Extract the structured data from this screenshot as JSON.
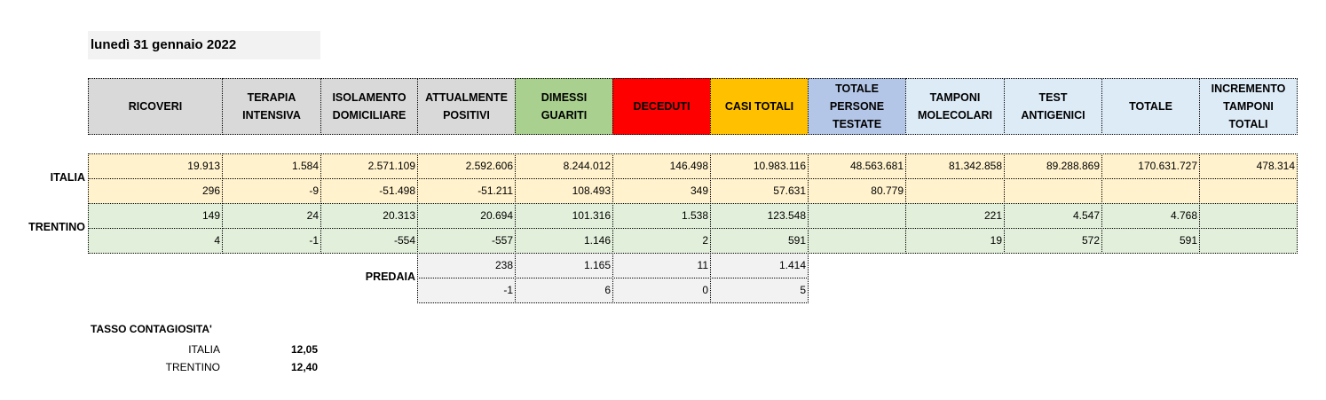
{
  "date": "lunedì 31 gennaio 2022",
  "headers": [
    {
      "label": "RICOVERI",
      "bg": "#d9d9d9"
    },
    {
      "label": "TERAPIA\nINTENSIVA",
      "bg": "#d9d9d9"
    },
    {
      "label": "ISOLAMENTO\nDOMICILIARE",
      "bg": "#d9d9d9"
    },
    {
      "label": "ATTUALMENTE\nPOSITIVI",
      "bg": "#d9d9d9"
    },
    {
      "label": "DIMESSI\nGUARITI",
      "bg": "#a9d08e"
    },
    {
      "label": "DECEDUTI",
      "bg": "#ff0000"
    },
    {
      "label": "CASI TOTALI",
      "bg": "#ffc000"
    },
    {
      "label": "TOTALE\nPERSONE\nTESTATE",
      "bg": "#b4c6e7"
    },
    {
      "label": "TAMPONI\nMOLECOLARI",
      "bg": "#ddebf7"
    },
    {
      "label": "TEST\nANTIGENICI",
      "bg": "#ddebf7"
    },
    {
      "label": "TOTALE",
      "bg": "#ddebf7"
    },
    {
      "label": "INCREMENTO\nTAMPONI\nTOTALI",
      "bg": "#ddebf7"
    }
  ],
  "italia": {
    "label": "ITALIA",
    "row1": [
      "19.913",
      "1.584",
      "2.571.109",
      "2.592.606",
      "8.244.012",
      "146.498",
      "10.983.116",
      "48.563.681",
      "81.342.858",
      "89.288.869",
      "170.631.727",
      "478.314"
    ],
    "row2": [
      "296",
      "-9",
      "-51.498",
      "-51.211",
      "108.493",
      "349",
      "57.631",
      "80.779",
      "",
      "",
      "",
      ""
    ]
  },
  "trentino": {
    "label": "TRENTINO",
    "row1": [
      "149",
      "24",
      "20.313",
      "20.694",
      "101.316",
      "1.538",
      "123.548",
      "",
      "221",
      "4.547",
      "4.768",
      ""
    ],
    "row2": [
      "4",
      "-1",
      "-554",
      "-557",
      "1.146",
      "2",
      "591",
      "",
      "19",
      "572",
      "591",
      ""
    ]
  },
  "predaia": {
    "label": "PREDAIA",
    "row1": [
      "238",
      "1.165",
      "11",
      "1.414"
    ],
    "row2": [
      "-1",
      "6",
      "0",
      "5"
    ]
  },
  "tasso": {
    "title": "TASSO CONTAGIOSITA'",
    "italia_label": "ITALIA",
    "italia_value": "12,05",
    "trentino_label": "TRENTINO",
    "trentino_value": "12,40"
  }
}
